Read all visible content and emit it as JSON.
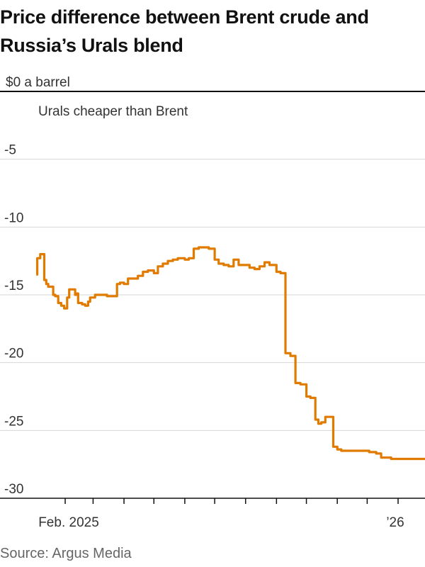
{
  "chart_data": {
    "type": "line",
    "title": "Price difference between Brent crude and Russia’s Urals blend",
    "unit_label": "$0 a barrel",
    "annotation": "Urals cheaper than Brent",
    "y_ticks": [
      {
        "value": -5,
        "label": "-5"
      },
      {
        "value": -10,
        "label": "-10"
      },
      {
        "value": -15,
        "label": "-15"
      },
      {
        "value": -20,
        "label": "-20"
      },
      {
        "value": -25,
        "label": "-25"
      },
      {
        "value": -30,
        "label": "-30"
      }
    ],
    "ylim": [
      -30,
      0
    ],
    "x_labels": [
      {
        "date": "2025-01-01",
        "label": "Feb. 2025"
      },
      {
        "date": "2026-01-01",
        "label": "’26"
      }
    ],
    "x_month_ticks": [
      "2025-02-01",
      "2025-03-01",
      "2025-04-01",
      "2025-05-01",
      "2025-06-01",
      "2025-07-01",
      "2025-08-01",
      "2025-09-01",
      "2025-10-01",
      "2025-11-01",
      "2025-12-01",
      "2026-01-01"
    ],
    "xlim": [
      "2024-12-31",
      "2026-01-28"
    ],
    "grid": true,
    "line_color": "#e07b00",
    "series": [
      {
        "x": [
          "2025-01-03",
          "2025-01-04",
          "2025-01-07",
          "2025-01-10",
          "2025-01-11",
          "2025-01-13",
          "2025-01-15",
          "2025-01-17",
          "2025-01-20",
          "2025-01-22",
          "2025-01-25",
          "2025-01-28",
          "2025-01-31",
          "2025-02-03",
          "2025-02-05",
          "2025-02-08",
          "2025-02-11",
          "2025-02-12",
          "2025-02-14",
          "2025-02-18",
          "2025-02-21",
          "2025-02-24",
          "2025-02-26",
          "2025-03-03",
          "2025-03-07",
          "2025-03-10",
          "2025-03-15",
          "2025-03-20",
          "2025-03-25",
          "2025-03-28",
          "2025-04-01",
          "2025-04-05",
          "2025-04-10",
          "2025-04-15",
          "2025-04-20",
          "2025-04-25",
          "2025-05-01",
          "2025-05-05",
          "2025-05-10",
          "2025-05-15",
          "2025-05-20",
          "2025-05-25",
          "2025-06-01",
          "2025-06-05",
          "2025-06-10",
          "2025-06-15",
          "2025-06-20",
          "2025-06-25",
          "2025-07-01",
          "2025-07-05",
          "2025-07-10",
          "2025-07-15",
          "2025-07-20",
          "2025-07-25",
          "2025-08-01",
          "2025-08-05",
          "2025-08-10",
          "2025-08-15",
          "2025-08-20",
          "2025-08-25",
          "2025-09-01",
          "2025-09-05",
          "2025-09-10",
          "2025-09-15",
          "2025-09-20",
          "2025-09-25",
          "2025-10-01",
          "2025-10-05",
          "2025-10-10",
          "2025-10-13",
          "2025-10-16",
          "2025-10-20",
          "2025-10-24",
          "2025-10-28",
          "2025-11-01",
          "2025-11-05",
          "2025-11-10",
          "2025-11-15",
          "2025-11-20",
          "2025-11-25",
          "2025-12-01",
          "2025-12-03",
          "2025-12-06",
          "2025-12-10",
          "2025-12-15",
          "2025-12-20",
          "2025-12-25",
          "2026-01-01",
          "2026-01-05",
          "2026-01-10",
          "2026-01-15",
          "2026-01-20",
          "2026-01-23",
          "2026-01-28"
        ],
        "y": [
          -13.5,
          -12.3,
          -12.0,
          -12.0,
          -13.9,
          -14.2,
          -14.4,
          -14.4,
          -15.0,
          -15.1,
          -15.6,
          -15.8,
          -16.0,
          -15.2,
          -14.6,
          -14.6,
          -15.0,
          -14.9,
          -15.6,
          -15.7,
          -15.8,
          -15.5,
          -15.2,
          -15.0,
          -15.0,
          -15.0,
          -15.1,
          -15.1,
          -14.2,
          -14.1,
          -14.2,
          -13.8,
          -13.8,
          -13.6,
          -13.3,
          -13.2,
          -13.4,
          -12.9,
          -12.7,
          -12.5,
          -12.4,
          -12.3,
          -12.4,
          -12.3,
          -11.6,
          -11.5,
          -11.5,
          -11.6,
          -12.4,
          -12.7,
          -12.8,
          -12.9,
          -12.4,
          -12.8,
          -12.8,
          -13.0,
          -13.1,
          -12.9,
          -12.6,
          -12.8,
          -13.3,
          -13.4,
          -19.3,
          -19.5,
          -21.5,
          -21.6,
          -22.5,
          -22.6,
          -24.2,
          -24.5,
          -24.4,
          -24.0,
          -24.0,
          -26.2,
          -26.4,
          -26.5,
          -26.5,
          -26.5,
          -26.5,
          -26.5,
          -26.5,
          -26.6,
          -26.6,
          -26.7,
          -27.0,
          -27.0,
          -27.1,
          -27.1,
          -27.1,
          -27.1,
          -27.1,
          -27.1,
          -27.1,
          -27.1
        ]
      }
    ],
    "source": "Source: Argus Media"
  }
}
